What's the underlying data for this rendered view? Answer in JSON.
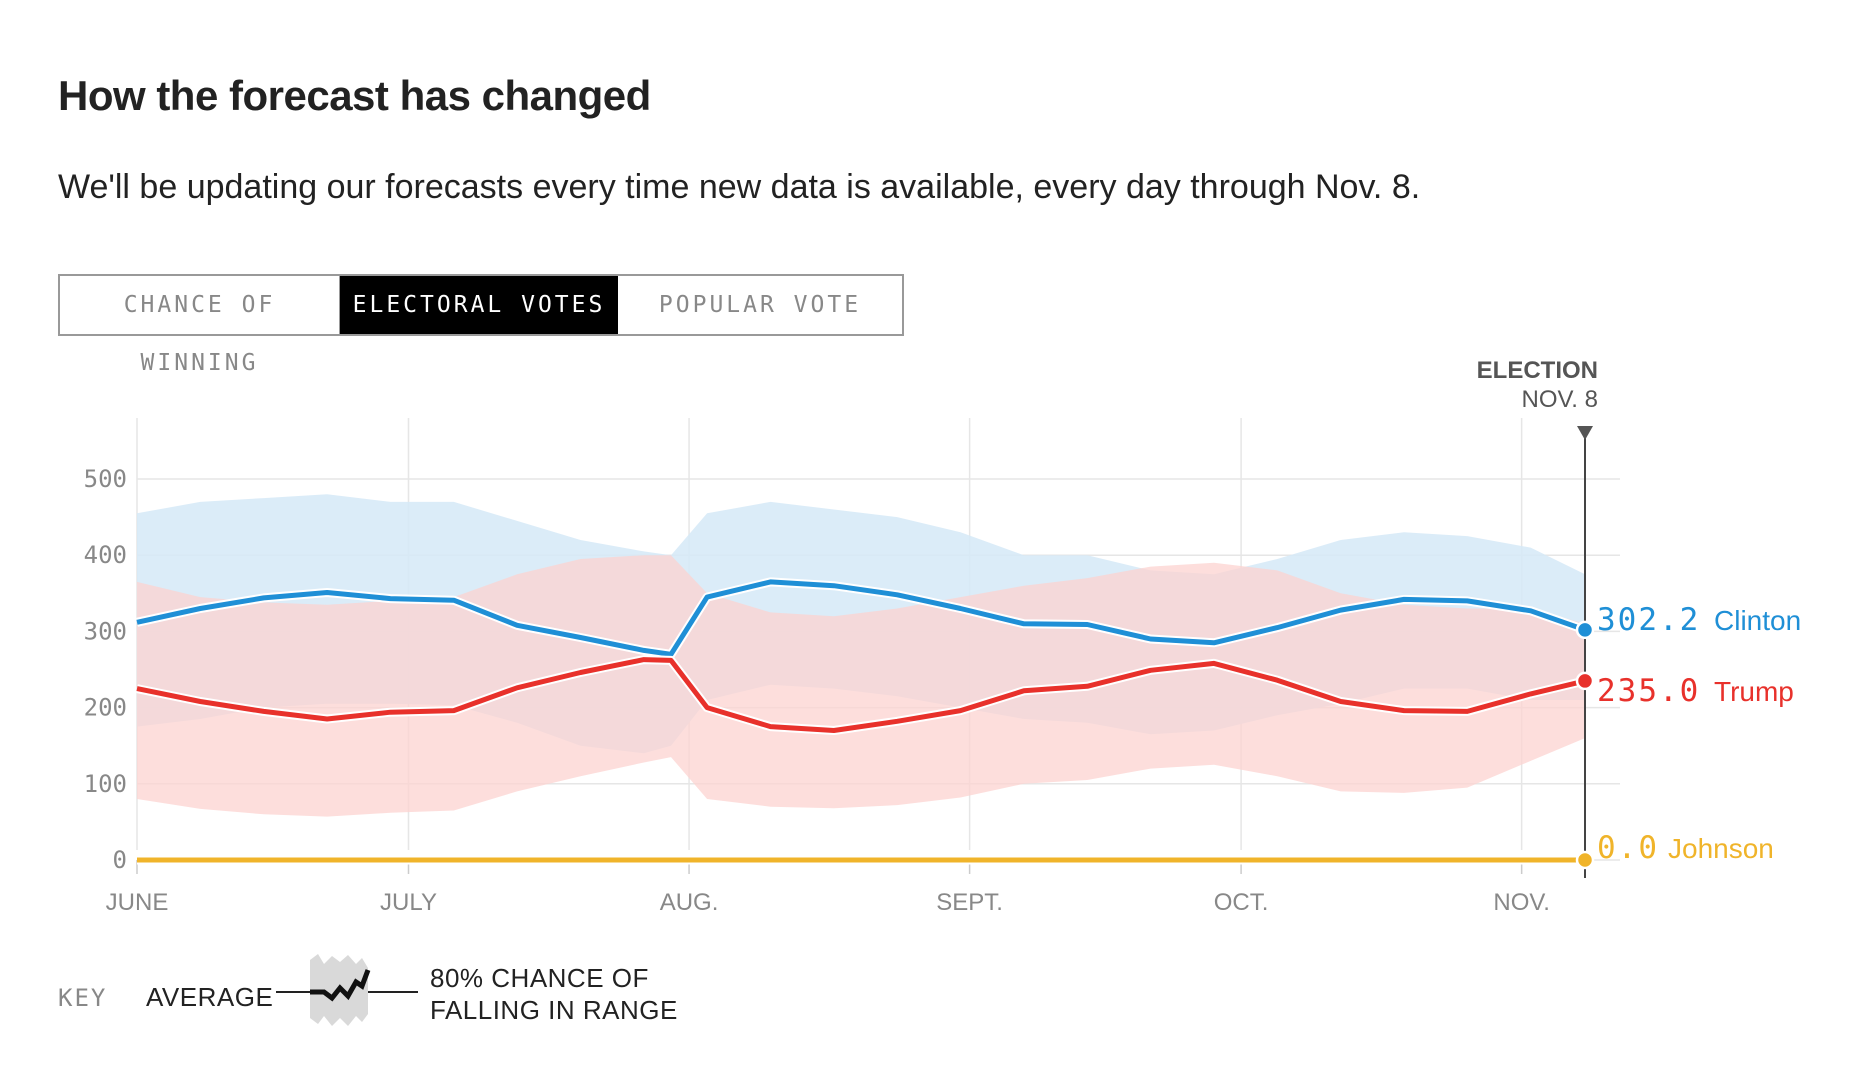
{
  "header": {
    "title": "How the forecast has changed",
    "subtitle": "We'll be updating our forecasts every time new data is available, every day through Nov. 8."
  },
  "tabs": [
    {
      "label": "CHANCE OF WINNING",
      "active": false
    },
    {
      "label": "ELECTORAL VOTES",
      "active": true
    },
    {
      "label": "POPULAR VOTE",
      "active": false
    }
  ],
  "key": {
    "label": "KEY",
    "average": "AVERAGE",
    "range": "80% CHANCE OF FALLING IN RANGE"
  },
  "colors": {
    "clinton": "#1f8fd6",
    "trump": "#e8312b",
    "johnson": "#f0b42a",
    "clinton_band": "#d5e9f7",
    "trump_band": "#fcd3d0",
    "overlap_band": "#e2d4dd",
    "grid": "#e6e6e6"
  },
  "chart_data": {
    "type": "line",
    "title": "",
    "xlabel": "",
    "ylabel": "",
    "ylim": [
      0,
      550
    ],
    "yticks": [
      "0",
      "100",
      "200",
      "300",
      "400",
      "500"
    ],
    "xlim": [
      "2016-06-01",
      "2016-11-08"
    ],
    "xticks": [
      {
        "label": "JUNE",
        "date": "2016-06-01"
      },
      {
        "label": "JULY",
        "date": "2016-07-01"
      },
      {
        "label": "AUG.",
        "date": "2016-08-01"
      },
      {
        "label": "SEPT.",
        "date": "2016-09-01"
      },
      {
        "label": "OCT.",
        "date": "2016-10-01"
      },
      {
        "label": "NOV.",
        "date": "2016-11-01"
      }
    ],
    "election_marker": {
      "line1": "ELECTION",
      "line2": "NOV. 8",
      "date": "2016-11-08"
    },
    "grid": true,
    "legend": "end-of-line labels",
    "x": [
      "2016-06-01",
      "2016-06-08",
      "2016-06-15",
      "2016-06-22",
      "2016-06-29",
      "2016-07-06",
      "2016-07-13",
      "2016-07-20",
      "2016-07-27",
      "2016-07-30",
      "2016-08-03",
      "2016-08-10",
      "2016-08-17",
      "2016-08-24",
      "2016-08-31",
      "2016-09-07",
      "2016-09-14",
      "2016-09-21",
      "2016-09-28",
      "2016-10-05",
      "2016-10-12",
      "2016-10-19",
      "2016-10-26",
      "2016-11-02",
      "2016-11-08"
    ],
    "series": [
      {
        "name": "Clinton",
        "end_value": "302.2",
        "values": [
          312,
          330,
          344,
          351,
          343,
          341,
          308,
          292,
          275,
          270,
          345,
          365,
          360,
          348,
          330,
          310,
          309,
          290,
          285,
          305,
          328,
          342,
          340,
          327,
          302
        ],
        "low": [
          175,
          185,
          200,
          205,
          205,
          203,
          180,
          150,
          140,
          150,
          210,
          230,
          225,
          215,
          200,
          185,
          180,
          165,
          170,
          190,
          205,
          225,
          225,
          210,
          210
        ],
        "high": [
          455,
          470,
          475,
          480,
          470,
          470,
          445,
          420,
          405,
          400,
          455,
          470,
          460,
          450,
          430,
          400,
          400,
          380,
          375,
          395,
          420,
          430,
          425,
          410,
          375
        ]
      },
      {
        "name": "Trump",
        "end_value": "235.0",
        "values": [
          225,
          208,
          195,
          185,
          194,
          196,
          226,
          246,
          263,
          262,
          200,
          175,
          170,
          182,
          196,
          222,
          228,
          249,
          258,
          236,
          208,
          196,
          195,
          218,
          235
        ],
        "low": [
          80,
          67,
          60,
          57,
          62,
          65,
          90,
          110,
          128,
          135,
          80,
          70,
          68,
          72,
          82,
          100,
          105,
          120,
          125,
          110,
          90,
          88,
          95,
          130,
          160
        ],
        "high": [
          365,
          345,
          338,
          335,
          340,
          345,
          375,
          395,
          400,
          400,
          350,
          325,
          320,
          330,
          345,
          360,
          370,
          385,
          390,
          380,
          350,
          335,
          330,
          330,
          310
        ]
      },
      {
        "name": "Johnson",
        "end_value": "0.0",
        "values": [
          0,
          0,
          0,
          0,
          0,
          0,
          0,
          0,
          0,
          0,
          0,
          0,
          0,
          0,
          0,
          0,
          0,
          0,
          0,
          0,
          0,
          0,
          0,
          0,
          0
        ]
      }
    ]
  }
}
